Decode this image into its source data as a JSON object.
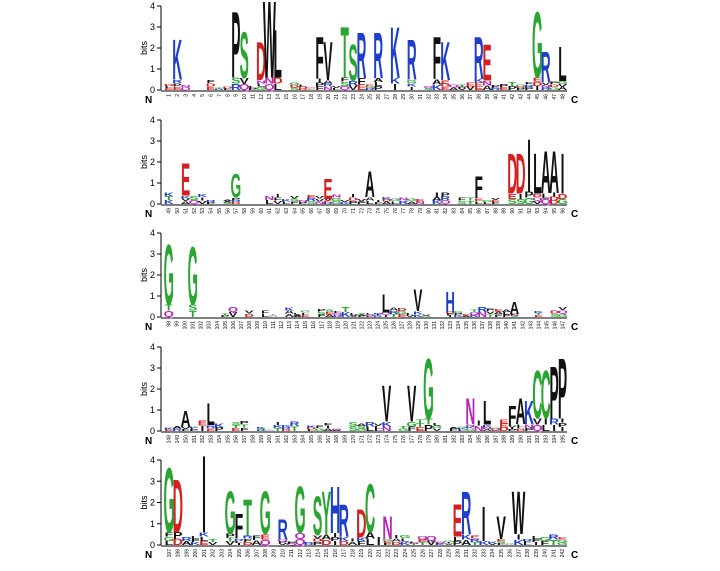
{
  "figure": {
    "ylabel": "bits",
    "y_ticks": [
      "0",
      "1",
      "2",
      "3",
      "4"
    ],
    "n_term_label": "N",
    "c_term_label": "C"
  },
  "colors": {
    "acidic_red": "#d42020",
    "basic_blue": "#1f3fc9",
    "polar_green": "#2aa532",
    "amide_purple": "#b428b4",
    "hydrophobic_black": "#111111"
  },
  "chart_data": {
    "type": "sequence-logo",
    "ylabel": "bits",
    "ylim": [
      0,
      4
    ],
    "rows": [
      {
        "first_position": 1,
        "last_position": 48,
        "tall_letters": [
          {
            "pos": 2,
            "residue": "K",
            "bits": 2.0
          },
          {
            "pos": 9,
            "residue": "P",
            "bits": 3.3
          },
          {
            "pos": 10,
            "residue": "S",
            "bits": 2.3
          },
          {
            "pos": 12,
            "residue": "D",
            "bits": 1.9
          },
          {
            "pos": 13,
            "residue": "W",
            "bits": 3.8
          },
          {
            "pos": 14,
            "residue": "L",
            "bits": 2.4
          },
          {
            "pos": 19,
            "residue": "F",
            "bits": 2.1
          },
          {
            "pos": 20,
            "residue": "V",
            "bits": 1.9
          },
          {
            "pos": 22,
            "residue": "T",
            "bits": 2.5
          },
          {
            "pos": 23,
            "residue": "S",
            "bits": 1.8
          },
          {
            "pos": 24,
            "residue": "R",
            "bits": 2.3
          },
          {
            "pos": 26,
            "residue": "R",
            "bits": 2.3
          },
          {
            "pos": 28,
            "residue": "K",
            "bits": 2.5
          },
          {
            "pos": 30,
            "residue": "R",
            "bits": 2.0
          },
          {
            "pos": 33,
            "residue": "F",
            "bits": 2.1
          },
          {
            "pos": 34,
            "residue": "K",
            "bits": 1.9
          },
          {
            "pos": 38,
            "residue": "R",
            "bits": 2.1
          },
          {
            "pos": 39,
            "residue": "E",
            "bits": 1.8
          },
          {
            "pos": 45,
            "residue": "G",
            "bits": 3.3
          },
          {
            "pos": 46,
            "residue": "R",
            "bits": 1.5
          },
          {
            "pos": 48,
            "residue": "L",
            "bits": 1.7
          }
        ]
      },
      {
        "first_position": 49,
        "last_position": 96,
        "tall_letters": [
          {
            "pos": 51,
            "residue": "E",
            "bits": 1.6
          },
          {
            "pos": 57,
            "residue": "G",
            "bits": 1.2
          },
          {
            "pos": 68,
            "residue": "E",
            "bits": 1.0
          },
          {
            "pos": 73,
            "residue": "A",
            "bits": 1.3
          },
          {
            "pos": 86,
            "residue": "F",
            "bits": 1.1
          },
          {
            "pos": 90,
            "residue": "D",
            "bits": 2.0
          },
          {
            "pos": 91,
            "residue": "D",
            "bits": 2.0
          },
          {
            "pos": 92,
            "residue": "I",
            "bits": 2.6
          },
          {
            "pos": 93,
            "residue": "L",
            "bits": 2.0
          },
          {
            "pos": 94,
            "residue": "A",
            "bits": 2.1
          },
          {
            "pos": 95,
            "residue": "A",
            "bits": 2.1
          },
          {
            "pos": 96,
            "residue": "I",
            "bits": 2.0
          }
        ]
      },
      {
        "first_position": 98,
        "last_position": 147,
        "tall_letters": [
          {
            "pos": 98,
            "residue": "G",
            "bits": 3.0
          },
          {
            "pos": 101,
            "residue": "G",
            "bits": 2.9
          },
          {
            "pos": 125,
            "residue": "L",
            "bits": 0.9
          },
          {
            "pos": 129,
            "residue": "V",
            "bits": 1.1
          },
          {
            "pos": 133,
            "residue": "H",
            "bits": 1.0
          },
          {
            "pos": 141,
            "residue": "A",
            "bits": 0.6
          }
        ]
      },
      {
        "first_position": 148,
        "last_position": 195,
        "tall_letters": [
          {
            "pos": 150,
            "residue": "A",
            "bits": 0.8
          },
          {
            "pos": 153,
            "residue": "L",
            "bits": 1.1
          },
          {
            "pos": 174,
            "residue": "V",
            "bits": 1.8
          },
          {
            "pos": 177,
            "residue": "V",
            "bits": 1.8
          },
          {
            "pos": 179,
            "residue": "G",
            "bits": 3.0
          },
          {
            "pos": 184,
            "residue": "N",
            "bits": 1.3
          },
          {
            "pos": 186,
            "residue": "L",
            "bits": 1.2
          },
          {
            "pos": 189,
            "residue": "F",
            "bits": 1.0
          },
          {
            "pos": 190,
            "residue": "A",
            "bits": 1.3
          },
          {
            "pos": 191,
            "residue": "K",
            "bits": 1.2
          },
          {
            "pos": 192,
            "residue": "C",
            "bits": 2.4
          },
          {
            "pos": 193,
            "residue": "C",
            "bits": 2.4
          },
          {
            "pos": 194,
            "residue": "P",
            "bits": 2.6
          },
          {
            "pos": 195,
            "residue": "P",
            "bits": 3.0
          }
        ]
      },
      {
        "first_position": 197,
        "last_position": 242,
        "tall_letters": [
          {
            "pos": 197,
            "residue": "G",
            "bits": 3.2
          },
          {
            "pos": 198,
            "residue": "D",
            "bits": 2.6
          },
          {
            "pos": 201,
            "residue": "I",
            "bits": 3.8
          },
          {
            "pos": 204,
            "residue": "G",
            "bits": 2.1
          },
          {
            "pos": 205,
            "residue": "F",
            "bits": 1.2
          },
          {
            "pos": 206,
            "residue": "T",
            "bits": 1.8
          },
          {
            "pos": 208,
            "residue": "G",
            "bits": 2.1
          },
          {
            "pos": 210,
            "residue": "R",
            "bits": 1.0
          },
          {
            "pos": 212,
            "residue": "G",
            "bits": 2.3
          },
          {
            "pos": 214,
            "residue": "S",
            "bits": 1.9
          },
          {
            "pos": 215,
            "residue": "Y",
            "bits": 2.1
          },
          {
            "pos": 216,
            "residue": "H",
            "bits": 2.3
          },
          {
            "pos": 217,
            "residue": "R",
            "bits": 1.6
          },
          {
            "pos": 219,
            "residue": "D",
            "bits": 1.4
          },
          {
            "pos": 220,
            "residue": "C",
            "bits": 2.4
          },
          {
            "pos": 222,
            "residue": "N",
            "bits": 1.1
          },
          {
            "pos": 230,
            "residue": "E",
            "bits": 1.6
          },
          {
            "pos": 231,
            "residue": "R",
            "bits": 2.1
          },
          {
            "pos": 233,
            "residue": "I",
            "bits": 1.5
          },
          {
            "pos": 235,
            "residue": "V",
            "bits": 1.1
          },
          {
            "pos": 237,
            "residue": "W",
            "bits": 2.1
          }
        ]
      }
    ]
  }
}
